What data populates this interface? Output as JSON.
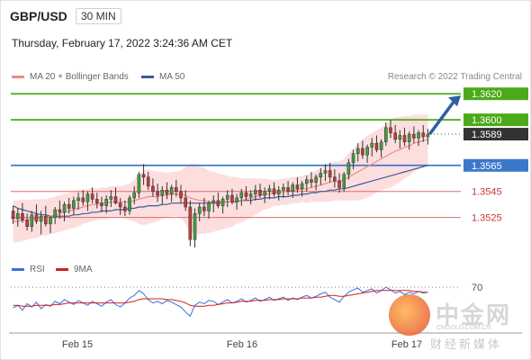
{
  "header": {
    "pair": "GBP/USD",
    "timeframe": "30 MIN",
    "timestamp": "Thursday, February 17, 2022 3:24:36 AM CET"
  },
  "legend": {
    "ma20": "MA 20 + Bollinger Bands",
    "ma50": "MA 50",
    "ma20_color": "#f08a8a",
    "ma50_color": "#3b5b9a",
    "credit": "Research © 2022 Trading Central"
  },
  "price_levels": [
    {
      "label": "1.3620",
      "value": 1.362,
      "kind": "target",
      "color": "#4caa1a"
    },
    {
      "label": "1.3600",
      "value": 1.36,
      "kind": "resistance",
      "color": "#4caa1a"
    },
    {
      "label": "1.3589",
      "value": 1.3589,
      "kind": "current",
      "color": "#333333"
    },
    {
      "label": "1.3565",
      "value": 1.3565,
      "kind": "pivot",
      "color": "#3a78c9"
    },
    {
      "label": "1.3545",
      "value": 1.3545,
      "kind": "support",
      "color": "#e06a6a"
    },
    {
      "label": "1.3525",
      "value": 1.3525,
      "kind": "support",
      "color": "#e06a6a"
    }
  ],
  "indicator": {
    "rsi_label": "RSI",
    "ma_label": "9MA",
    "rsi_color": "#3a6fd8",
    "ma_color": "#d42020",
    "level": "70"
  },
  "x_axis": {
    "labels": [
      "Feb 15",
      "Feb 16",
      "Feb 17"
    ]
  },
  "watermark": {
    "title": "中金网",
    "domain": "CNGOLD.COM.CN",
    "subtitle": "财经新媒体"
  },
  "chart_data": {
    "type": "candlestick",
    "title": "GBP/USD",
    "y_unit": "price",
    "ylim": [
      1.3495,
      1.3625
    ],
    "x_ticks": [
      "Feb 15",
      "Feb 16",
      "Feb 17"
    ],
    "ohlc": [
      [
        1.353,
        1.3534,
        1.352,
        1.3524
      ],
      [
        1.3524,
        1.3532,
        1.3518,
        1.3528
      ],
      [
        1.3528,
        1.3536,
        1.3521,
        1.3523
      ],
      [
        1.3523,
        1.3528,
        1.3515,
        1.3518
      ],
      [
        1.3518,
        1.353,
        1.3514,
        1.3527
      ],
      [
        1.3527,
        1.3535,
        1.352,
        1.3522
      ],
      [
        1.3522,
        1.353,
        1.3512,
        1.3526
      ],
      [
        1.3526,
        1.3534,
        1.3518,
        1.352
      ],
      [
        1.352,
        1.3526,
        1.3513,
        1.3525
      ],
      [
        1.3525,
        1.3533,
        1.352,
        1.3531
      ],
      [
        1.3531,
        1.3538,
        1.3524,
        1.3529
      ],
      [
        1.3529,
        1.3537,
        1.3522,
        1.3535
      ],
      [
        1.3535,
        1.354,
        1.3528,
        1.3532
      ],
      [
        1.3532,
        1.3541,
        1.3527,
        1.3538
      ],
      [
        1.3538,
        1.3544,
        1.3531,
        1.354
      ],
      [
        1.354,
        1.3546,
        1.3534,
        1.3537
      ],
      [
        1.3537,
        1.3545,
        1.353,
        1.3543
      ],
      [
        1.3543,
        1.3548,
        1.3536,
        1.3539
      ],
      [
        1.3539,
        1.3544,
        1.3532,
        1.3536
      ],
      [
        1.3536,
        1.3541,
        1.3529,
        1.3534
      ],
      [
        1.3534,
        1.3542,
        1.3528,
        1.3539
      ],
      [
        1.3539,
        1.3546,
        1.3533,
        1.3541
      ],
      [
        1.3541,
        1.3548,
        1.3535,
        1.3536
      ],
      [
        1.3536,
        1.354,
        1.3527,
        1.3533
      ],
      [
        1.3533,
        1.3538,
        1.3526,
        1.353
      ],
      [
        1.353,
        1.3542,
        1.3527,
        1.354
      ],
      [
        1.354,
        1.3549,
        1.3535,
        1.3544
      ],
      [
        1.3544,
        1.356,
        1.354,
        1.3558
      ],
      [
        1.3558,
        1.3566,
        1.355,
        1.3556
      ],
      [
        1.3556,
        1.356,
        1.3546,
        1.3549
      ],
      [
        1.3549,
        1.3555,
        1.3541,
        1.3545
      ],
      [
        1.3545,
        1.3551,
        1.3537,
        1.3542
      ],
      [
        1.3542,
        1.3549,
        1.3535,
        1.3546
      ],
      [
        1.3546,
        1.3552,
        1.3539,
        1.3543
      ],
      [
        1.3543,
        1.355,
        1.3537,
        1.3548
      ],
      [
        1.3548,
        1.3554,
        1.3541,
        1.3545
      ],
      [
        1.3545,
        1.355,
        1.3536,
        1.354
      ],
      [
        1.354,
        1.3546,
        1.353,
        1.3533
      ],
      [
        1.3533,
        1.3538,
        1.3503,
        1.3508
      ],
      [
        1.3508,
        1.3532,
        1.3502,
        1.3528
      ],
      [
        1.3528,
        1.3536,
        1.3522,
        1.3533
      ],
      [
        1.3533,
        1.354,
        1.3526,
        1.353
      ],
      [
        1.353,
        1.3538,
        1.3524,
        1.3536
      ],
      [
        1.3536,
        1.3542,
        1.3529,
        1.3538
      ],
      [
        1.3538,
        1.3544,
        1.3532,
        1.3534
      ],
      [
        1.3534,
        1.3541,
        1.3528,
        1.3539
      ],
      [
        1.3539,
        1.3546,
        1.3533,
        1.3542
      ],
      [
        1.3542,
        1.3547,
        1.3535,
        1.3537
      ],
      [
        1.3537,
        1.3543,
        1.3531,
        1.354
      ],
      [
        1.354,
        1.3547,
        1.3534,
        1.3544
      ],
      [
        1.3544,
        1.3549,
        1.3538,
        1.3541
      ],
      [
        1.3541,
        1.3546,
        1.3535,
        1.3543
      ],
      [
        1.3543,
        1.355,
        1.3538,
        1.3546
      ],
      [
        1.3546,
        1.3551,
        1.354,
        1.3542
      ],
      [
        1.3542,
        1.3548,
        1.3536,
        1.3545
      ],
      [
        1.3545,
        1.355,
        1.3539,
        1.3547
      ],
      [
        1.3547,
        1.3552,
        1.3541,
        1.3543
      ],
      [
        1.3543,
        1.3549,
        1.3538,
        1.3546
      ],
      [
        1.3546,
        1.3551,
        1.354,
        1.3548
      ],
      [
        1.3548,
        1.3553,
        1.3542,
        1.3545
      ],
      [
        1.3545,
        1.3552,
        1.354,
        1.355
      ],
      [
        1.355,
        1.3556,
        1.3544,
        1.3547
      ],
      [
        1.3547,
        1.3553,
        1.3541,
        1.3551
      ],
      [
        1.3551,
        1.3557,
        1.3545,
        1.3554
      ],
      [
        1.3554,
        1.356,
        1.3548,
        1.3552
      ],
      [
        1.3552,
        1.3558,
        1.3546,
        1.3556
      ],
      [
        1.3556,
        1.3563,
        1.355,
        1.3559
      ],
      [
        1.3559,
        1.3566,
        1.3553,
        1.3561
      ],
      [
        1.3561,
        1.3567,
        1.3552,
        1.3556
      ],
      [
        1.3556,
        1.3562,
        1.3548,
        1.3553
      ],
      [
        1.3553,
        1.3559,
        1.3544,
        1.3548
      ],
      [
        1.3548,
        1.356,
        1.3545,
        1.3558
      ],
      [
        1.3558,
        1.357,
        1.3554,
        1.3567
      ],
      [
        1.3567,
        1.3577,
        1.3562,
        1.3574
      ],
      [
        1.3574,
        1.3582,
        1.3568,
        1.3578
      ],
      [
        1.3578,
        1.3584,
        1.357,
        1.3573
      ],
      [
        1.3573,
        1.3581,
        1.3567,
        1.3579
      ],
      [
        1.3579,
        1.3586,
        1.3572,
        1.3582
      ],
      [
        1.3582,
        1.3588,
        1.3575,
        1.3577
      ],
      [
        1.3577,
        1.3585,
        1.3571,
        1.3583
      ],
      [
        1.3583,
        1.3598,
        1.358,
        1.3594
      ],
      [
        1.3594,
        1.36,
        1.3586,
        1.359
      ],
      [
        1.359,
        1.3596,
        1.3582,
        1.3585
      ],
      [
        1.3585,
        1.3592,
        1.3578,
        1.3588
      ],
      [
        1.3588,
        1.3594,
        1.358,
        1.3583
      ],
      [
        1.3583,
        1.3591,
        1.3577,
        1.3589
      ],
      [
        1.3589,
        1.3595,
        1.3582,
        1.3586
      ],
      [
        1.3586,
        1.3592,
        1.358,
        1.359
      ],
      [
        1.359,
        1.3596,
        1.3583,
        1.3587
      ],
      [
        1.3587,
        1.3593,
        1.3581,
        1.3589
      ]
    ],
    "ma20": [
      1.3522,
      1.3522,
      1.3523,
      1.3523,
      1.3524,
      1.3524,
      1.3525,
      1.3525,
      1.3526,
      1.3527,
      1.3528,
      1.3529,
      1.353,
      1.3531,
      1.3532,
      1.3533,
      1.3534,
      1.3535,
      1.3535,
      1.3536,
      1.3536,
      1.3537,
      1.3537,
      1.3537,
      1.3537,
      1.3537,
      1.3538,
      1.3539,
      1.354,
      1.3541,
      1.3541,
      1.3541,
      1.3542,
      1.3542,
      1.3543,
      1.3543,
      1.3543,
      1.3542,
      1.354,
      1.3539,
      1.3538,
      1.3538,
      1.3537,
      1.3537,
      1.3537,
      1.3537,
      1.3537,
      1.3537,
      1.3538,
      1.3538,
      1.3539,
      1.354,
      1.3541,
      1.3542,
      1.3543,
      1.3543,
      1.3544,
      1.3544,
      1.3545,
      1.3545,
      1.3546,
      1.3546,
      1.3547,
      1.3547,
      1.3548,
      1.3549,
      1.355,
      1.3551,
      1.3552,
      1.3553,
      1.3553,
      1.3554,
      1.3556,
      1.3558,
      1.356,
      1.3562,
      1.3564,
      1.3566,
      1.3568,
      1.357,
      1.3572,
      1.3574,
      1.3576,
      1.3577,
      1.3579,
      1.358,
      1.3582,
      1.3583,
      1.3584,
      1.3585
    ],
    "ma50": [
      1.3534,
      1.3532,
      1.3531,
      1.353,
      1.3529,
      1.3528,
      1.3527,
      1.3527,
      1.3526,
      1.3526,
      1.3526,
      1.3526,
      1.3526,
      1.3527,
      1.3527,
      1.3528,
      1.3528,
      1.3529,
      1.3529,
      1.353,
      1.353,
      1.353,
      1.3531,
      1.3531,
      1.3531,
      1.3532,
      1.3532,
      1.3533,
      1.3533,
      1.3534,
      1.3534,
      1.3534,
      1.3535,
      1.3535,
      1.3536,
      1.3536,
      1.3536,
      1.3536,
      1.3536,
      1.3536,
      1.3536,
      1.3536,
      1.3536,
      1.3536,
      1.3536,
      1.3537,
      1.3537,
      1.3537,
      1.3537,
      1.3538,
      1.3538,
      1.3538,
      1.3539,
      1.3539,
      1.354,
      1.354,
      1.354,
      1.3541,
      1.3541,
      1.3541,
      1.3542,
      1.3542,
      1.3543,
      1.3543,
      1.3544,
      1.3544,
      1.3545,
      1.3545,
      1.3546,
      1.3546,
      1.3547,
      1.3547,
      1.3548,
      1.3549,
      1.355,
      1.3551,
      1.3552,
      1.3553,
      1.3554,
      1.3555,
      1.3556,
      1.3557,
      1.3558,
      1.3559,
      1.356,
      1.3561,
      1.3562,
      1.3563,
      1.3564,
      1.3565
    ],
    "bb_width": [
      0.0016,
      0.0016,
      0.0016,
      0.0015,
      0.0015,
      0.0015,
      0.0014,
      0.0014,
      0.0014,
      0.0014,
      0.0014,
      0.0014,
      0.0014,
      0.0014,
      0.0014,
      0.0013,
      0.0013,
      0.0013,
      0.0012,
      0.0012,
      0.0012,
      0.0012,
      0.0012,
      0.0012,
      0.0013,
      0.0014,
      0.0016,
      0.0019,
      0.0021,
      0.0021,
      0.002,
      0.0019,
      0.0018,
      0.0017,
      0.0017,
      0.0017,
      0.0018,
      0.0022,
      0.0026,
      0.0027,
      0.0026,
      0.0025,
      0.0024,
      0.0023,
      0.0022,
      0.0021,
      0.002,
      0.0019,
      0.0018,
      0.0017,
      0.0016,
      0.0015,
      0.0014,
      0.0013,
      0.0012,
      0.0011,
      0.001,
      0.001,
      0.001,
      0.001,
      0.001,
      0.001,
      0.001,
      0.0011,
      0.0011,
      0.0012,
      0.0013,
      0.0014,
      0.0015,
      0.0015,
      0.0015,
      0.0016,
      0.0018,
      0.002,
      0.0022,
      0.0023,
      0.0024,
      0.0024,
      0.0024,
      0.0024,
      0.0025,
      0.0026,
      0.0026,
      0.0025,
      0.0024,
      0.0023,
      0.0022,
      0.0021,
      0.002,
      0.0019
    ],
    "rsi": [
      45,
      48,
      42,
      50,
      46,
      52,
      44,
      49,
      47,
      53,
      50,
      55,
      52,
      49,
      54,
      51,
      48,
      53,
      50,
      47,
      52,
      55,
      49,
      46,
      51,
      57,
      60,
      66,
      62,
      55,
      51,
      53,
      50,
      54,
      52,
      49,
      46,
      40,
      35,
      48,
      52,
      50,
      54,
      53,
      49,
      52,
      55,
      51,
      53,
      56,
      52,
      54,
      57,
      53,
      55,
      58,
      54,
      56,
      58,
      54,
      57,
      55,
      58,
      60,
      57,
      59,
      62,
      64,
      58,
      55,
      52,
      59,
      64,
      67,
      69,
      64,
      66,
      68,
      63,
      66,
      70,
      67,
      63,
      65,
      61,
      64,
      62,
      65,
      63,
      64
    ],
    "rsi_ma": [
      48,
      48,
      47,
      47,
      47,
      48,
      48,
      48,
      48,
      49,
      49,
      50,
      51,
      51,
      51,
      51,
      51,
      51,
      51,
      51,
      51,
      51,
      51,
      51,
      51,
      52,
      53,
      55,
      56,
      56,
      56,
      56,
      56,
      55,
      55,
      54,
      53,
      51,
      48,
      47,
      47,
      47,
      48,
      48,
      49,
      50,
      51,
      51,
      52,
      53,
      53,
      53,
      54,
      54,
      54,
      55,
      55,
      55,
      56,
      56,
      56,
      56,
      57,
      57,
      57,
      58,
      58,
      59,
      60,
      60,
      59,
      59,
      60,
      61,
      62,
      63,
      64,
      65,
      66,
      66,
      66,
      66,
      66,
      66,
      66,
      66,
      65,
      65,
      64,
      64
    ],
    "rsi_level": 70,
    "forecast_target": 1.362
  }
}
